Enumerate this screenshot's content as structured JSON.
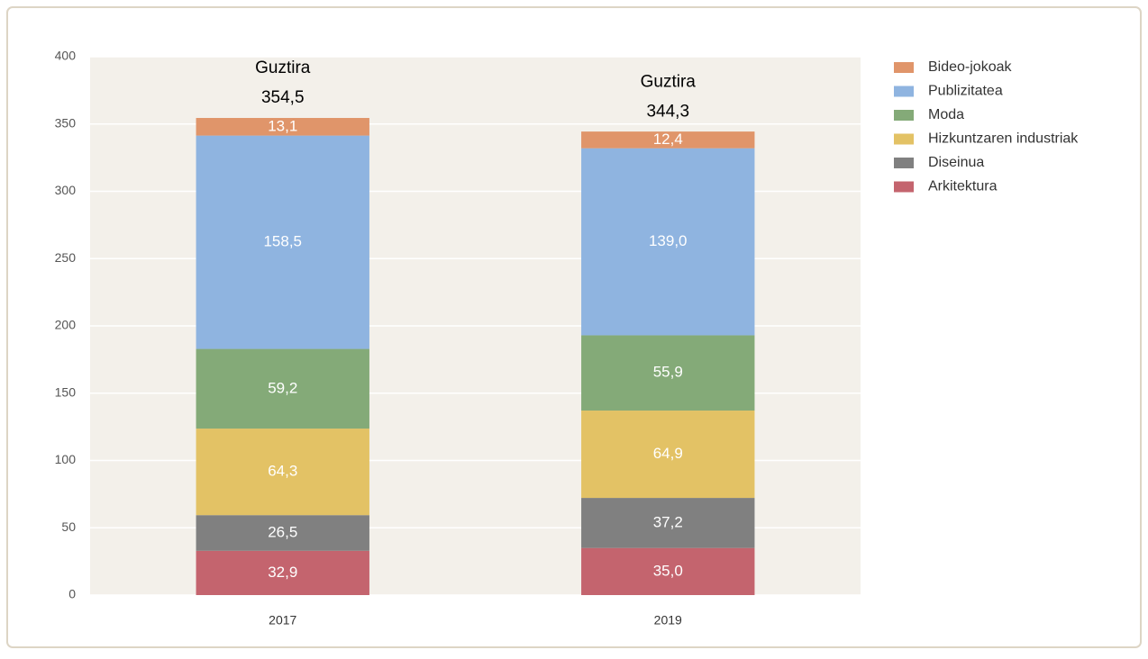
{
  "chart_data": {
    "type": "stacked_bar",
    "categories": [
      "2017",
      "2019"
    ],
    "series": [
      {
        "name": "Arkitektura",
        "color": "#c4646e",
        "values": [
          32.9,
          35.0
        ],
        "value_labels": [
          "32,9",
          "35,0"
        ]
      },
      {
        "name": "Diseinua",
        "color": "#808080",
        "values": [
          26.5,
          37.2
        ],
        "value_labels": [
          "26,5",
          "37,2"
        ]
      },
      {
        "name": "Hizkuntzaren industriak",
        "color": "#e3c265",
        "values": [
          64.3,
          64.9
        ],
        "value_labels": [
          "64,3",
          "64,9"
        ]
      },
      {
        "name": "Moda",
        "color": "#84aa78",
        "values": [
          59.2,
          55.9
        ],
        "value_labels": [
          "59,2",
          "55,9"
        ]
      },
      {
        "name": "Publizitatea",
        "color": "#8fb4e0",
        "values": [
          158.5,
          139.0
        ],
        "value_labels": [
          "158,5",
          "139,0"
        ]
      },
      {
        "name": "Bideo-jokoak",
        "color": "#e0956a",
        "values": [
          13.1,
          12.4
        ],
        "value_labels": [
          "13,1",
          "12,4"
        ]
      }
    ],
    "totals": {
      "label": "Guztira",
      "values": [
        354.5,
        344.3
      ],
      "value_labels": [
        "354,5",
        "344,3"
      ]
    },
    "ylim": [
      0,
      400
    ],
    "yticks": [
      0,
      50,
      100,
      150,
      200,
      250,
      300,
      350,
      400
    ],
    "grid": true,
    "legend": "right"
  }
}
